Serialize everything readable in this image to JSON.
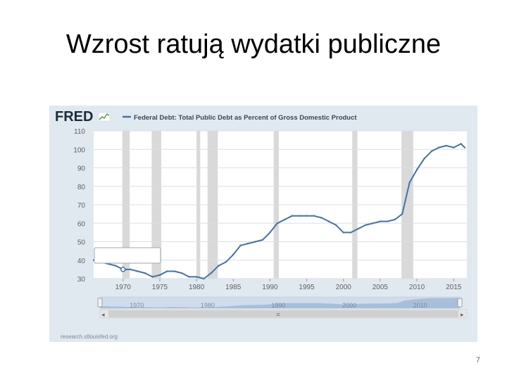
{
  "slide": {
    "title": "Wzrost ratują wydatki publiczne",
    "page_number": "7"
  },
  "fred": {
    "logo_text": "FRED",
    "source_text": "research.stlouisfed.org",
    "colors": {
      "line": "#4572a7",
      "recession": "#cccccc",
      "panel": "#e1e9f0",
      "plot": "#ffffff"
    }
  },
  "chart_data": {
    "type": "line",
    "title": "Federal Debt: Total Public Debt as Percent of Gross Domestic Product",
    "xlabel": "",
    "ylabel": "",
    "xlim": [
      1966,
      2016.8
    ],
    "ylim": [
      30,
      110
    ],
    "y_ticks": [
      "30",
      "40",
      "50",
      "60",
      "70",
      "80",
      "90",
      "100",
      "110"
    ],
    "x_ticks": [
      "1970",
      "1975",
      "1980",
      "1985",
      "1990",
      "1995",
      "2000",
      "2005",
      "2010",
      "2015"
    ],
    "navigator_ticks": [
      "1970",
      "1980",
      "1990",
      "2000",
      "2010"
    ],
    "legend_position": "top",
    "grid": true,
    "recessions": [
      [
        1969.9,
        1970.9
      ],
      [
        1973.9,
        1975.2
      ],
      [
        1980.0,
        1980.5
      ],
      [
        1981.5,
        1982.9
      ],
      [
        1990.5,
        1991.2
      ],
      [
        2001.2,
        2001.9
      ],
      [
        2007.9,
        2009.5
      ]
    ],
    "series": [
      {
        "name": "Federal Debt: Total Public Debt as Percent of Gross Domestic Product",
        "x": [
          1966,
          1967,
          1968,
          1969,
          1970,
          1971,
          1972,
          1973,
          1974,
          1975,
          1976,
          1977,
          1978,
          1979,
          1980,
          1981,
          1982,
          1983,
          1984,
          1985,
          1986,
          1987,
          1988,
          1989,
          1990,
          1991,
          1992,
          1993,
          1994,
          1995,
          1996,
          1997,
          1998,
          1999,
          2000,
          2001,
          2002,
          2003,
          2004,
          2005,
          2006,
          2007,
          2008,
          2009,
          2010,
          2011,
          2012,
          2013,
          2014,
          2015,
          2016,
          2016.5
        ],
        "y": [
          40,
          39,
          38,
          37,
          35,
          35,
          34,
          33,
          31,
          32,
          34,
          34,
          33,
          31,
          31,
          30,
          33,
          37,
          39,
          43,
          48,
          49,
          50,
          51,
          55,
          60,
          62,
          64,
          64,
          64,
          64,
          63,
          61,
          59,
          55,
          55,
          57,
          59,
          60,
          61,
          61,
          62,
          65,
          82,
          89,
          95,
          99,
          101,
          102,
          101,
          103,
          101
        ]
      }
    ]
  }
}
